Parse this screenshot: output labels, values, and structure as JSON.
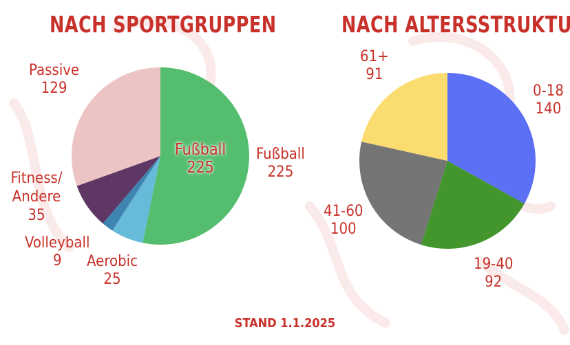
{
  "chart_data": [
    {
      "type": "pie",
      "title": "NACH SPORTGRUPPEN",
      "categories": [
        "Fußball",
        "Aerobic",
        "Volleyball",
        "Fitness/ Andere",
        "Passive"
      ],
      "values": [
        225,
        25,
        9,
        35,
        129
      ],
      "colors": [
        "#55bd6e",
        "#67bad8",
        "#3f85b2",
        "#5e3764",
        "#ecc4c4"
      ],
      "inner_label": {
        "name": "Fußball",
        "value": 225
      }
    },
    {
      "type": "pie",
      "title": "NACH ALTERSSTRUKTUR",
      "categories": [
        "0-18",
        "19-40",
        "41-60",
        "61+"
      ],
      "values": [
        140,
        92,
        100,
        91
      ],
      "colors": [
        "#5b70f4",
        "#43962c",
        "#757575",
        "#fbdc71"
      ]
    }
  ],
  "footer": "STAND 1.1.2025"
}
